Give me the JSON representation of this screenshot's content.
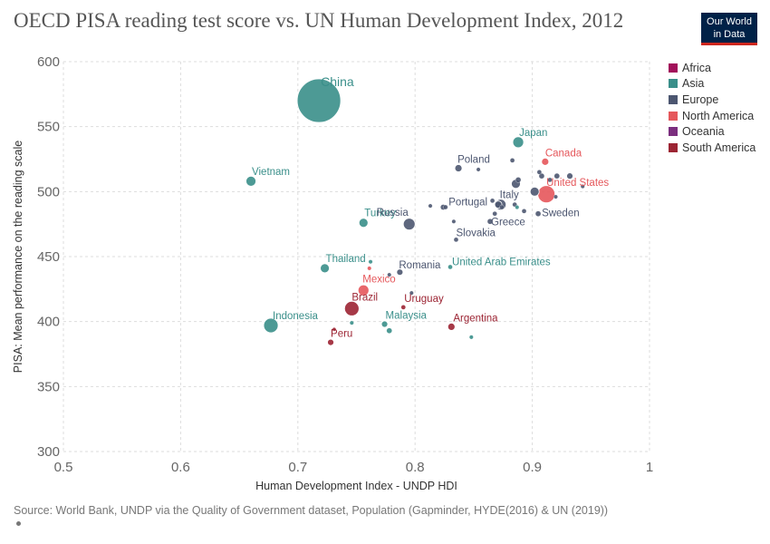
{
  "page": {
    "title": "OECD PISA reading test score vs. UN Human Development Index, 2012",
    "logo_line1": "Our World",
    "logo_line2": "in Data",
    "source": "Source: World Bank, UNDP via the Quality of Government dataset, Population (Gapminder, HYDE(2016) & UN (2019))"
  },
  "legend": [
    {
      "name": "Africa",
      "color": "#a2105a"
    },
    {
      "name": "Asia",
      "color": "#3a8f8a"
    },
    {
      "name": "Europe",
      "color": "#4c5670"
    },
    {
      "name": "North America",
      "color": "#e5575b"
    },
    {
      "name": "Oceania",
      "color": "#7b2e7e"
    },
    {
      "name": "South America",
      "color": "#9c2433"
    }
  ],
  "chart_data": {
    "type": "scatter",
    "title": "OECD PISA reading test score vs. UN Human Development Index, 2012",
    "xlabel": "Human Development Index - UNDP HDI",
    "ylabel": "PISA: Mean performance on the reading scale",
    "xlim": [
      0.5,
      1
    ],
    "ylim": [
      300,
      600
    ],
    "xticks": [
      "0.5",
      "0.6",
      "0.7",
      "0.8",
      "0.9",
      "1"
    ],
    "yticks": [
      "300",
      "350",
      "400",
      "450",
      "500",
      "550",
      "600"
    ],
    "grid": true,
    "legend_position": "right",
    "points": [
      {
        "label": "China",
        "region": "Asia",
        "x": 0.718,
        "y": 570,
        "size": 24
      },
      {
        "label": "Japan",
        "region": "Asia",
        "x": 0.888,
        "y": 538,
        "size": 6
      },
      {
        "label": "Vietnam",
        "region": "Asia",
        "x": 0.66,
        "y": 508,
        "size": 5.5
      },
      {
        "label": "Turkey",
        "region": "Asia",
        "x": 0.756,
        "y": 476,
        "size": 5
      },
      {
        "label": "Thailand",
        "region": "Asia",
        "x": 0.723,
        "y": 441,
        "size": 5
      },
      {
        "label": "Indonesia",
        "region": "Asia",
        "x": 0.677,
        "y": 397,
        "size": 8
      },
      {
        "label": "Malaysia",
        "region": "Asia",
        "x": 0.774,
        "y": 398,
        "size": 3.5
      },
      {
        "label": "United Arab Emirates",
        "region": "Asia",
        "x": 0.83,
        "y": 442,
        "size": 2.5
      },
      {
        "label": "",
        "region": "Asia",
        "x": 0.848,
        "y": 388,
        "size": 2.2
      },
      {
        "label": "",
        "region": "Asia",
        "x": 0.778,
        "y": 393,
        "size": 3
      },
      {
        "label": "",
        "region": "Asia",
        "x": 0.746,
        "y": 399,
        "size": 2.2
      },
      {
        "label": "",
        "region": "Asia",
        "x": 0.762,
        "y": 446,
        "size": 2.2
      },
      {
        "label": "",
        "region": "Asia",
        "x": 0.887,
        "y": 488,
        "size": 2.2
      },
      {
        "label": "Canada",
        "region": "North America",
        "x": 0.911,
        "y": 523,
        "size": 4
      },
      {
        "label": "United States",
        "region": "North America",
        "x": 0.912,
        "y": 498,
        "size": 9.5
      },
      {
        "label": "Mexico",
        "region": "North America",
        "x": 0.756,
        "y": 424,
        "size": 6
      },
      {
        "label": "",
        "region": "North America",
        "x": 0.761,
        "y": 441,
        "size": 2.2
      },
      {
        "label": "Brazil",
        "region": "South America",
        "x": 0.746,
        "y": 410,
        "size": 8
      },
      {
        "label": "Uruguay",
        "region": "South America",
        "x": 0.79,
        "y": 411,
        "size": 2.5
      },
      {
        "label": "Argentina",
        "region": "South America",
        "x": 0.831,
        "y": 396,
        "size": 4
      },
      {
        "label": "Peru",
        "region": "South America",
        "x": 0.728,
        "y": 384,
        "size": 3.5
      },
      {
        "label": "",
        "region": "South America",
        "x": 0.731,
        "y": 394,
        "size": 2
      },
      {
        "label": "Poland",
        "region": "Europe",
        "x": 0.837,
        "y": 518,
        "size": 4
      },
      {
        "label": "Italy",
        "region": "Europe",
        "x": 0.873,
        "y": 490,
        "size": 6
      },
      {
        "label": "Russia",
        "region": "Europe",
        "x": 0.795,
        "y": 475,
        "size": 6.5
      },
      {
        "label": "Portugal",
        "region": "Europe",
        "x": 0.824,
        "y": 488,
        "size": 3
      },
      {
        "label": "Greece",
        "region": "Europe",
        "x": 0.864,
        "y": 477,
        "size": 3
      },
      {
        "label": "Sweden",
        "region": "Europe",
        "x": 0.905,
        "y": 483,
        "size": 3
      },
      {
        "label": "Slovakia",
        "region": "Europe",
        "x": 0.835,
        "y": 463,
        "size": 2.5
      },
      {
        "label": "Romania",
        "region": "Europe",
        "x": 0.787,
        "y": 438,
        "size": 3.5
      },
      {
        "label": "",
        "region": "Europe",
        "x": 0.886,
        "y": 506,
        "size": 5
      },
      {
        "label": "",
        "region": "Europe",
        "x": 0.888,
        "y": 509,
        "size": 3
      },
      {
        "label": "",
        "region": "Europe",
        "x": 0.902,
        "y": 500,
        "size": 5
      },
      {
        "label": "",
        "region": "Europe",
        "x": 0.908,
        "y": 512,
        "size": 3
      },
      {
        "label": "",
        "region": "Europe",
        "x": 0.915,
        "y": 509,
        "size": 2.5
      },
      {
        "label": "",
        "region": "Europe",
        "x": 0.921,
        "y": 512,
        "size": 3
      },
      {
        "label": "",
        "region": "Europe",
        "x": 0.932,
        "y": 512,
        "size": 3.5
      },
      {
        "label": "",
        "region": "Europe",
        "x": 0.906,
        "y": 515,
        "size": 2.5
      },
      {
        "label": "",
        "region": "Europe",
        "x": 0.883,
        "y": 524,
        "size": 2.5
      },
      {
        "label": "",
        "region": "Europe",
        "x": 0.854,
        "y": 517,
        "size": 2.2
      },
      {
        "label": "",
        "region": "Europe",
        "x": 0.871,
        "y": 490,
        "size": 4
      },
      {
        "label": "",
        "region": "Europe",
        "x": 0.885,
        "y": 490,
        "size": 2.5
      },
      {
        "label": "",
        "region": "Europe",
        "x": 0.893,
        "y": 485,
        "size": 2.5
      },
      {
        "label": "",
        "region": "Europe",
        "x": 0.866,
        "y": 493,
        "size": 2.5
      },
      {
        "label": "",
        "region": "Europe",
        "x": 0.826,
        "y": 488,
        "size": 2.5
      },
      {
        "label": "",
        "region": "Europe",
        "x": 0.813,
        "y": 489,
        "size": 2.2
      },
      {
        "label": "",
        "region": "Europe",
        "x": 0.833,
        "y": 477,
        "size": 2.2
      },
      {
        "label": "",
        "region": "Europe",
        "x": 0.868,
        "y": 483,
        "size": 2.5
      },
      {
        "label": "",
        "region": "Europe",
        "x": 0.92,
        "y": 496,
        "size": 2.2
      },
      {
        "label": "",
        "region": "Europe",
        "x": 0.778,
        "y": 436,
        "size": 2.2
      },
      {
        "label": "",
        "region": "Europe",
        "x": 0.797,
        "y": 422,
        "size": 2.2
      },
      {
        "label": "",
        "region": "Europe",
        "x": 0.943,
        "y": 504,
        "size": 2.2
      },
      {
        "label": "",
        "region": "Europe",
        "x": 0.874,
        "y": 488,
        "size": 2.5
      }
    ]
  }
}
